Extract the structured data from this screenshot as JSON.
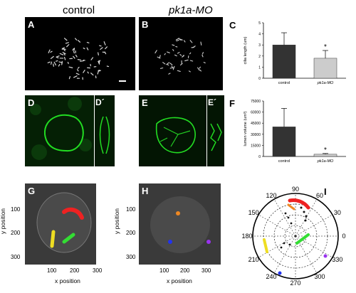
{
  "headers": {
    "control": "control",
    "morphant": "pk1a-MO"
  },
  "panel_labels": {
    "A": "A",
    "B": "B",
    "C": "C",
    "D": "D",
    "D_prime": "D´",
    "E": "E",
    "E_prime": "E´",
    "F": "F",
    "G": "G",
    "H": "H",
    "I": "I"
  },
  "colors": {
    "bar_control": "#333333",
    "bar_mo": "#cccccc",
    "membrane_green": "#22dd22",
    "track_red": "#ee2222",
    "track_yellow": "#eedd22",
    "track_green": "#33dd33",
    "track_orange": "#ee8822",
    "track_blue": "#2233ee",
    "track_purple": "#9933ee"
  },
  "chart_data": [
    {
      "id": "C",
      "type": "bar",
      "categories": [
        "control",
        "pk1a-MO"
      ],
      "values": [
        3.0,
        1.8
      ],
      "errors": [
        1.1,
        0.7
      ],
      "significance": [
        "",
        "*"
      ],
      "ylabel": "cilia length (um)",
      "ylim": [
        0,
        5
      ],
      "yticks": [
        "0",
        "1",
        "2",
        "3",
        "4",
        "5"
      ]
    },
    {
      "id": "F",
      "type": "bar",
      "categories": [
        "control",
        "pk1a-MO"
      ],
      "values": [
        40000,
        3000
      ],
      "errors": [
        25000,
        1000
      ],
      "significance": [
        "",
        "*"
      ],
      "ylabel": "lumen volume (um³)",
      "ylim": [
        0,
        75000
      ],
      "yticks": [
        "0",
        "15000",
        "30000",
        "45000",
        "60000",
        "75000"
      ]
    }
  ],
  "panel_G": {
    "ylabel": "y position",
    "xlabel": "x position",
    "yticks": [
      "100",
      "200",
      "300"
    ],
    "xticks": [
      "100",
      "200",
      "300"
    ]
  },
  "panel_H": {
    "ylabel": "y position",
    "xlabel": "x position",
    "yticks": [
      "100",
      "200",
      "300"
    ],
    "xticks": [
      "100",
      "200",
      "300"
    ]
  },
  "polar": {
    "angle_labels": [
      "0",
      "30",
      "60",
      "90",
      "120",
      "150",
      "180",
      "210",
      "240",
      "270",
      "300",
      "330"
    ]
  }
}
